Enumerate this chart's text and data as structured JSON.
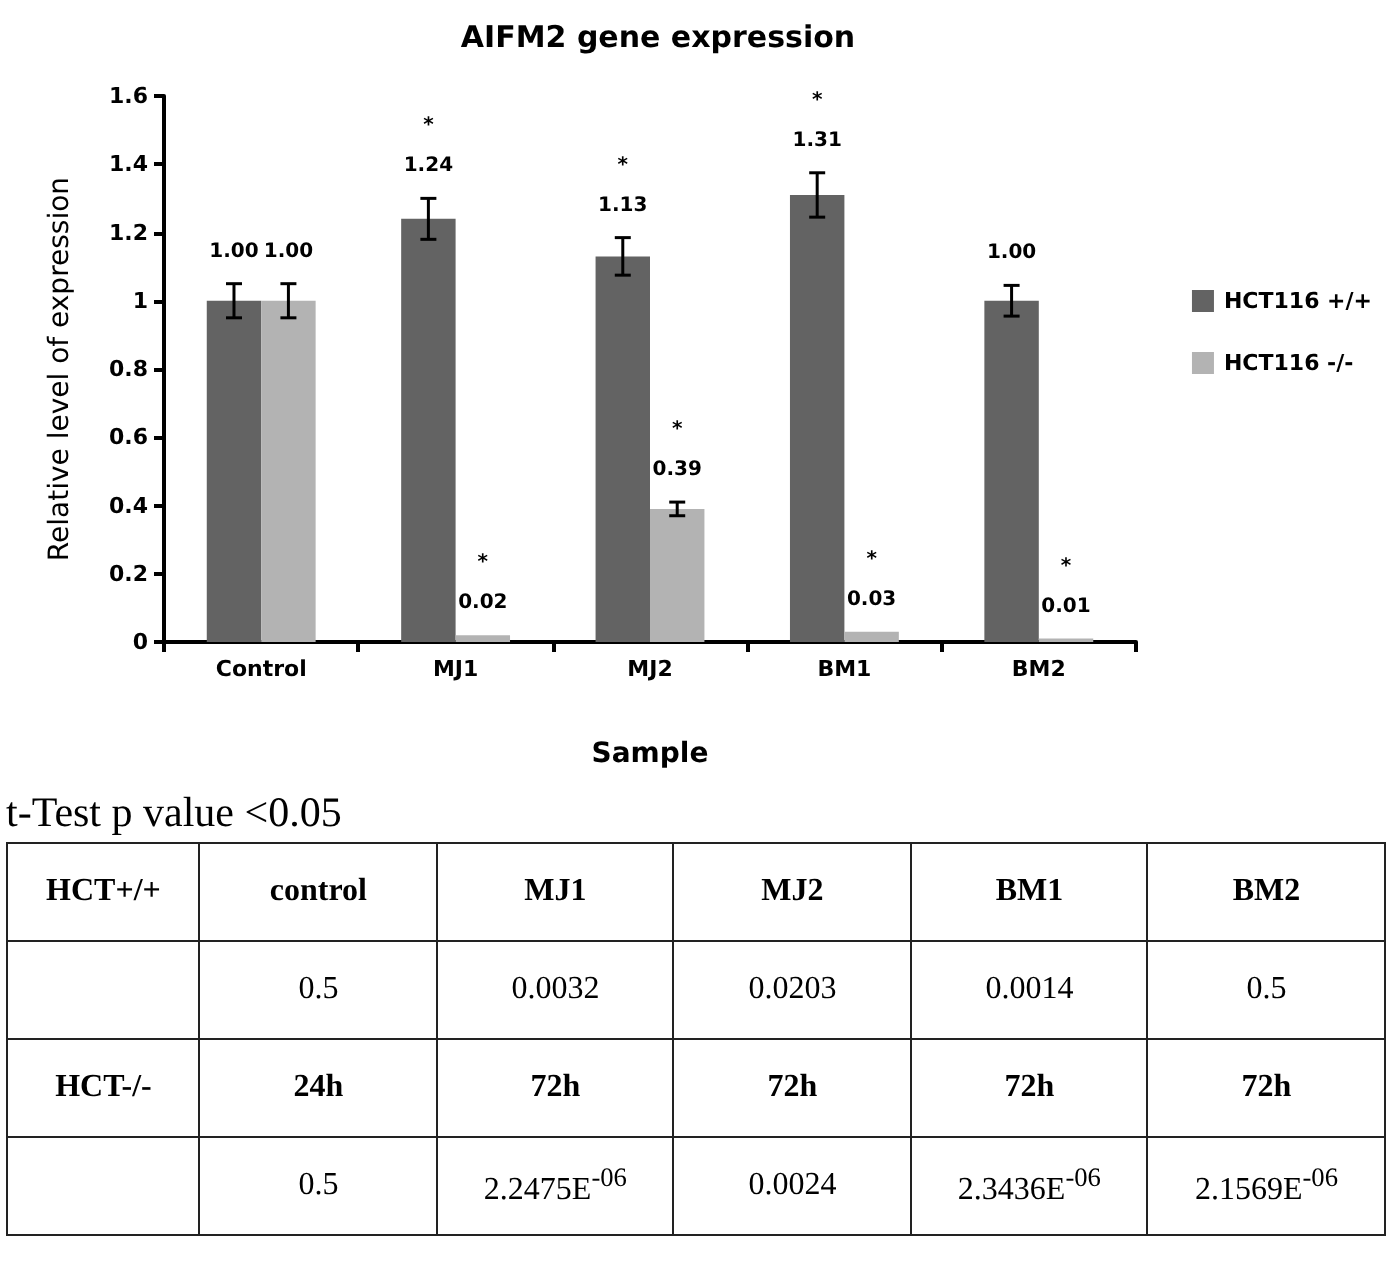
{
  "chart_data": [
    {
      "type": "bar",
      "title": "AIFM2 gene expression",
      "xlabel": "Sample",
      "ylabel": "Relative level of expression",
      "categories": [
        "Control",
        "MJ1",
        "MJ2",
        "BM1",
        "BM2"
      ],
      "series": [
        {
          "name": "HCT116 +/+",
          "color": "#636363",
          "values": [
            1.0,
            1.24,
            1.13,
            1.31,
            1.0
          ],
          "errors": [
            0.05,
            0.06,
            0.055,
            0.065,
            0.045
          ],
          "value_labels": [
            "1.00",
            "*\n1.24",
            "*\n1.13",
            "*\n1.31",
            "1.00"
          ]
        },
        {
          "name": "HCT116 -/-",
          "color": "#b3b3b3",
          "values": [
            1.0,
            0.02,
            0.39,
            0.03,
            0.01
          ],
          "errors": [
            0.05,
            null,
            0.02,
            null,
            null
          ],
          "value_labels": [
            "1.00",
            "*\n0.02",
            "*\n0.39",
            "*\n0.03",
            "*\n0.01"
          ]
        }
      ],
      "ylim": [
        0,
        1.6
      ],
      "yticks": [
        0,
        0.2,
        0.4,
        0.6,
        0.8,
        1,
        1.2,
        1.4,
        1.6
      ],
      "grid": false,
      "legend": "right"
    },
    {
      "type": "other",
      "title": "t-Test p value <0.05",
      "cell_labels": [
        [
          "HCT+/+",
          "control",
          "MJ1",
          "MJ2",
          "BM1",
          "BM2"
        ],
        [
          null,
          "0.5",
          "0.0032",
          "0.0203",
          "0.0014",
          "0.5"
        ],
        [
          "HCT-/-",
          "24h",
          "72h",
          "72h",
          "72h",
          "72h"
        ],
        [
          null,
          "0.5",
          "2.2475E$^{-06}$",
          "0.0024",
          "2.3436E$^{-06}$",
          "2.1569E$^{-06}$"
        ]
      ]
    }
  ]
}
